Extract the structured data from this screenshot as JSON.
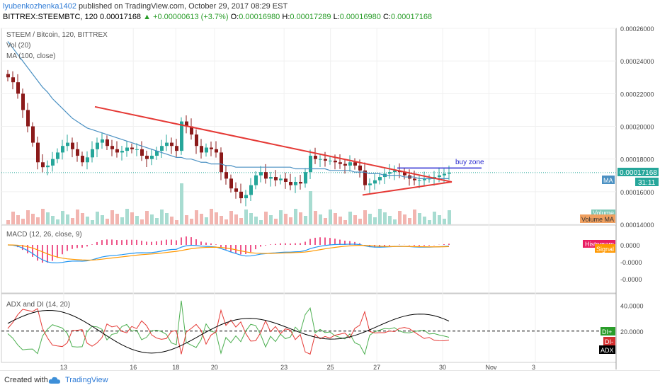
{
  "header": {
    "author": "lyubenkozhenka1402",
    "published_text": "published on TradingView.com, October 29, 2017 08:29 EST",
    "symbol": "BITTREX:STEEMBTC, 120",
    "last": "0.00017168",
    "change": "+0.00000613 (+3.7%)",
    "change_arrow": "▲",
    "open_label": "O:",
    "open": "0.00016980",
    "high_label": "H:",
    "high": "0.00017289",
    "low_label": "L:",
    "low": "0.00016980",
    "close_label": "C:",
    "close": "0.00017168"
  },
  "legend": {
    "title": "STEEM / Bitcoin, 120, BITTREX",
    "vol": "Vol (20)",
    "ma": "MA (100, close)",
    "macd": "MACD (12, 26, close, 9)",
    "adx": "ADX and DI (14, 20)"
  },
  "annotation": {
    "buy_zone": "buy zone"
  },
  "chart_data": [
    {
      "type": "candlestick",
      "pane": "price",
      "title": "STEEM / Bitcoin, 120, BITTREX",
      "yaxis_ticks": [
        "0.00026000",
        "0.00024000",
        "0.00022000",
        "0.00020000",
        "0.00018000",
        "0.00016000",
        "0.00014000"
      ],
      "ylim": [
        0.00014,
        0.00026
      ],
      "x_tick_labels": [
        "13",
        "16",
        "18",
        "20",
        "23",
        "25",
        "27",
        "30",
        "Nov",
        "3"
      ],
      "last_price_label": "0.00017168",
      "countdown_label": "31:11",
      "ma_badge": "MA",
      "volume_badge": "Volume",
      "volume_ma_badge": "Volume MA",
      "closes": [
        0.00023,
        0.000227,
        0.00022,
        0.00021,
        0.0002,
        0.00019,
        0.000178,
        0.000175,
        0.000176,
        0.00018,
        0.000184,
        0.000188,
        0.00019,
        0.000186,
        0.000182,
        0.000178,
        0.000181,
        0.000186,
        0.00019,
        0.000192,
        0.000188,
        0.000186,
        0.000184,
        0.000185,
        0.000187,
        0.000186,
        0.000186,
        0.000182,
        0.00018,
        0.000182,
        0.000185,
        0.000188,
        0.00019,
        0.000188,
        0.000185,
        0.000203,
        0.0002,
        0.000195,
        0.000188,
        0.000184,
        0.000187,
        0.000186,
        0.000184,
        0.000172,
        0.000168,
        0.000162,
        0.00016,
        0.000156,
        0.000158,
        0.000164,
        0.00017,
        0.000172,
        0.000168,
        0.000169,
        0.000167,
        0.000168,
        0.000166,
        0.000164,
        0.000166,
        0.000165,
        0.000172,
        0.000182,
        0.00018,
        0.00018,
        0.000179,
        0.000179,
        0.000178,
        0.000177,
        0.000176,
        0.000178,
        0.000176,
        0.000173,
        0.000164,
        0.000165,
        0.000167,
        0.000169,
        0.000171,
        0.000172,
        0.000173,
        0.000172,
        0.00017,
        0.000168,
        0.000167,
        0.000167,
        0.000168,
        0.000168,
        0.000169,
        0.00017,
        0.000171,
        0.0001717
      ],
      "ma_100": [
        0.000252,
        0.000248,
        0.000244,
        0.00024,
        0.000236,
        0.000232,
        0.000228,
        0.000224,
        0.000221,
        0.000217,
        0.000214,
        0.000211,
        0.000208,
        0.000205,
        0.000203,
        0.000201,
        0.000199,
        0.000198,
        0.000197,
        0.000196,
        0.000195,
        0.000194,
        0.000193,
        0.000192,
        0.000191,
        0.00019,
        0.000189,
        0.000188,
        0.000187,
        0.000186,
        0.000185,
        0.000184,
        0.000183,
        0.000182,
        0.000181,
        0.000181,
        0.00018,
        0.00018,
        0.000179,
        0.000178,
        0.000178,
        0.000177,
        0.000177,
        0.000177,
        0.000176,
        0.000176,
        0.000175,
        0.000175,
        0.000175,
        0.000175,
        0.000175,
        0.000175,
        0.000175,
        0.000175,
        0.000175,
        0.000175,
        0.000175,
        0.000175,
        0.000174,
        0.000174,
        0.000174,
        0.000174,
        0.000174,
        0.000174,
        0.000174,
        0.000173,
        0.000173,
        0.000173,
        0.000173,
        0.000173,
        0.000172,
        0.000172,
        0.000172,
        0.000171,
        0.000171,
        0.000171,
        0.00017,
        0.00017,
        0.00017,
        0.00017,
        0.000169,
        0.000169,
        0.000169,
        0.000168,
        0.000168,
        0.000168,
        0.000168,
        0.000168,
        0.000168,
        0.000168
      ],
      "trendlines": [
        {
          "name": "descending resistance",
          "color": "#e53935",
          "from": [
            18,
            0.000212
          ],
          "to": [
            90,
            0.000166
          ]
        },
        {
          "name": "ascending support",
          "color": "#e53935",
          "from": [
            72,
            0.000158
          ],
          "to": [
            90,
            0.000166
          ]
        },
        {
          "name": "buy zone",
          "color": "#2a2ad0",
          "from": [
            79,
            0.0001745
          ],
          "to": [
            96,
            0.0001745
          ]
        }
      ]
    },
    {
      "type": "line",
      "pane": "macd",
      "title": "MACD (12, 26, close, 9)",
      "yaxis_ticks": [
        "0.0000",
        "-0.0000",
        "-0.0000"
      ],
      "series": [
        {
          "name": "Histogram",
          "color": "#e91e63"
        },
        {
          "name": "Signal",
          "color": "#ff9800"
        }
      ],
      "badges": [
        "Histogram",
        "Signal"
      ]
    },
    {
      "type": "line",
      "pane": "adx",
      "title": "ADX and DI (14, 20)",
      "yaxis_ticks": [
        "40.0000",
        "20.0000"
      ],
      "threshold": 20,
      "series": [
        {
          "name": "DI+",
          "color": "#4caf50"
        },
        {
          "name": "DI-",
          "color": "#e53935"
        },
        {
          "name": "ADX",
          "color": "#000000"
        }
      ],
      "badges": [
        "DI+",
        "DI-",
        "ADX"
      ]
    }
  ],
  "footer": {
    "created": "Created with",
    "brand": "TradingView"
  },
  "colors": {
    "bull": "#26a69a",
    "bear": "#8b1a1a",
    "ma": "#4a90c2",
    "trend": "#e53935",
    "buy_zone": "#2a2ad0"
  }
}
